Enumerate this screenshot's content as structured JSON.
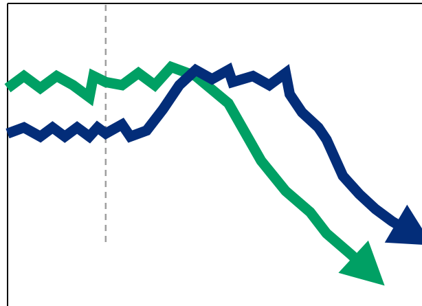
{
  "chart_data": {
    "type": "line",
    "title": "",
    "xlabel": "",
    "ylabel": "",
    "xlim": [
      0,
      50
    ],
    "ylim": [
      0,
      100
    ],
    "grid": false,
    "legend": "none",
    "reference_line": {
      "x": 12,
      "style": "dashed",
      "color": "#9e9e9e"
    },
    "series": [
      {
        "color": "#00a064",
        "arrow": "end",
        "x": [
          0,
          2,
          4,
          6,
          8,
          10,
          10.5,
          12,
          14,
          16,
          18,
          20,
          23,
          27,
          31,
          34,
          37,
          39,
          42,
          44
        ],
        "y": [
          72,
          76,
          72,
          76,
          73,
          69,
          76,
          74,
          73,
          77,
          73,
          79,
          76,
          67,
          48,
          38,
          31,
          24,
          17,
          12
        ]
      },
      {
        "color": "#032d79",
        "arrow": "end",
        "x": [
          0,
          2,
          4,
          5.5,
          7,
          8.5,
          10,
          11,
          12,
          14,
          15,
          17,
          19,
          21,
          23,
          25,
          27,
          27.5,
          30,
          32,
          34,
          34.5,
          36,
          38,
          39,
          41,
          43,
          45,
          47,
          49.5
        ],
        "y": [
          57,
          59,
          56,
          59,
          56,
          59,
          56,
          59,
          57,
          60,
          56,
          58,
          65,
          73,
          78,
          75,
          78,
          74,
          76,
          73,
          77,
          70,
          64,
          59,
          55,
          43,
          37,
          32,
          28,
          24
        ]
      }
    ]
  }
}
